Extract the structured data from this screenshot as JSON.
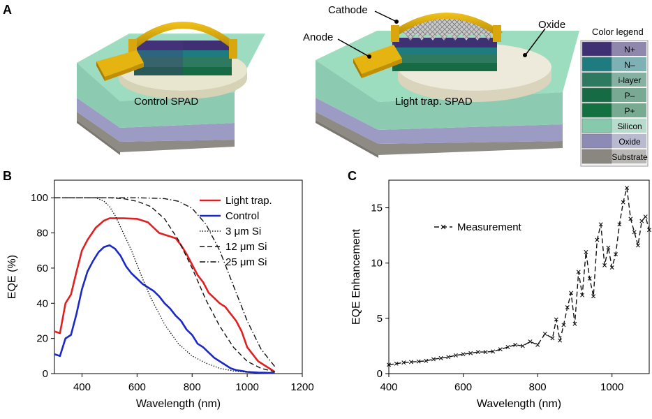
{
  "panels": {
    "a": "A",
    "b": "B",
    "c": "C"
  },
  "devices": {
    "control_label": "Control SPAD",
    "trap_label": "Light trap. SPAD",
    "callouts": {
      "cathode": "Cathode",
      "anode": "Anode",
      "oxide": "Oxide"
    }
  },
  "color_legend": {
    "title": "Color legend",
    "items": [
      {
        "label": "N+",
        "color": "#3f2f73"
      },
      {
        "label": "N–",
        "color": "#1e7b80"
      },
      {
        "label": "i-layer",
        "color": "#2d7a61"
      },
      {
        "label": "P–",
        "color": "#166b45"
      },
      {
        "label": "P+",
        "color": "#137040"
      },
      {
        "label": "Silicon",
        "color": "#86c9ad"
      },
      {
        "label": "Oxide",
        "color": "#8b8bb5"
      },
      {
        "label": "Substrate",
        "color": "#8a8680"
      }
    ]
  },
  "chart_data": [
    {
      "type": "line",
      "panel": "B",
      "xlabel": "Wavelength (nm)",
      "ylabel": "EQE (%)",
      "xlim": [
        300,
        1200
      ],
      "ylim": [
        0,
        110
      ],
      "xticks": [
        400,
        600,
        800,
        1000,
        1200
      ],
      "yticks": [
        0,
        20,
        40,
        60,
        80,
        100
      ],
      "legend_position": "top-right",
      "series": [
        {
          "name": "Light trap.",
          "color": "#e02020",
          "style": "solid",
          "x": [
            300,
            320,
            340,
            360,
            380,
            400,
            420,
            450,
            480,
            500,
            520,
            550,
            580,
            600,
            620,
            640,
            660,
            680,
            700,
            720,
            740,
            760,
            780,
            800,
            820,
            840,
            860,
            880,
            900,
            920,
            940,
            960,
            980,
            1000,
            1020,
            1040,
            1060,
            1080,
            1100
          ],
          "y": [
            24,
            23,
            40,
            45,
            58,
            70,
            76,
            83,
            87,
            88.3,
            88.3,
            88.3,
            88.1,
            88,
            87,
            86,
            83,
            80,
            79,
            78,
            77,
            73,
            68,
            62,
            56,
            52,
            46,
            43,
            40,
            38,
            34,
            30,
            24,
            15,
            11,
            7,
            5,
            3,
            1
          ]
        },
        {
          "name": "Control",
          "color": "#1a28c8",
          "style": "solid",
          "x": [
            300,
            320,
            340,
            360,
            380,
            400,
            420,
            440,
            460,
            480,
            500,
            520,
            540,
            560,
            580,
            600,
            620,
            640,
            660,
            680,
            700,
            720,
            740,
            760,
            780,
            800,
            820,
            840,
            860,
            880,
            900,
            920,
            940,
            960,
            980,
            1000,
            1020,
            1040,
            1060,
            1080,
            1100
          ],
          "y": [
            11,
            10,
            20,
            22,
            34,
            48,
            58,
            64,
            69,
            72,
            73,
            71,
            67,
            61,
            57,
            54,
            51,
            49,
            47,
            44,
            40,
            37,
            33,
            30,
            25,
            22,
            17,
            15,
            12,
            9,
            7,
            5,
            3,
            2,
            1.5,
            1,
            0.8,
            0.6,
            0.5,
            0.4,
            0.3
          ]
        },
        {
          "name": "3 μm Si",
          "color": "#111111",
          "style": "dotted",
          "x": [
            300,
            400,
            450,
            480,
            500,
            520,
            550,
            580,
            600,
            620,
            650,
            680,
            700,
            750,
            800,
            850,
            900,
            950,
            1000
          ],
          "y": [
            100,
            100,
            100,
            98,
            95,
            90,
            80,
            70,
            62,
            54,
            43,
            34,
            28,
            17,
            10,
            6,
            3,
            1.5,
            0.8
          ]
        },
        {
          "name": "12 μm Si",
          "color": "#111111",
          "style": "dashed",
          "x": [
            300,
            500,
            550,
            600,
            650,
            700,
            750,
            800,
            850,
            900,
            950,
            1000,
            1050,
            1100
          ],
          "y": [
            100,
            100,
            99.5,
            98,
            95,
            88,
            76,
            60,
            42,
            27,
            15,
            7,
            3,
            1
          ]
        },
        {
          "name": "25 μm Si",
          "color": "#111111",
          "style": "dashdot",
          "x": [
            300,
            600,
            650,
            700,
            750,
            800,
            850,
            900,
            950,
            1000,
            1050,
            1100
          ],
          "y": [
            100,
            100,
            99.8,
            99.5,
            98,
            94,
            85,
            70,
            50,
            30,
            14,
            4
          ]
        }
      ]
    },
    {
      "type": "line",
      "panel": "C",
      "xlabel": "Wavelength (nm)",
      "ylabel": "EQE Enhancement",
      "xlim": [
        400,
        1100
      ],
      "ylim": [
        0,
        17.5
      ],
      "xticks": [
        400,
        600,
        800,
        1000
      ],
      "yticks": [
        0,
        5,
        10,
        15
      ],
      "legend_position": "top-left",
      "series": [
        {
          "name": "Measurement",
          "color": "#111111",
          "style": "dashed",
          "marker": "x",
          "x": [
            400,
            420,
            440,
            460,
            480,
            500,
            520,
            540,
            560,
            580,
            600,
            620,
            640,
            660,
            680,
            700,
            720,
            740,
            760,
            780,
            800,
            820,
            840,
            850,
            860,
            870,
            880,
            890,
            900,
            910,
            920,
            930,
            940,
            950,
            960,
            970,
            980,
            990,
            1000,
            1010,
            1020,
            1030,
            1040,
            1050,
            1060,
            1070,
            1080,
            1090,
            1100
          ],
          "y": [
            0.8,
            0.9,
            1.0,
            1.05,
            1.1,
            1.15,
            1.3,
            1.4,
            1.5,
            1.65,
            1.75,
            1.85,
            1.95,
            1.95,
            2.0,
            2.2,
            2.4,
            2.6,
            2.5,
            2.9,
            2.6,
            3.6,
            3.2,
            4.9,
            3.0,
            4.4,
            6.0,
            7.3,
            4.5,
            9.2,
            7.1,
            11.0,
            8.6,
            7.0,
            12.1,
            13.5,
            9.8,
            11.4,
            9.6,
            10.8,
            13.5,
            15.5,
            16.8,
            14.0,
            12.8,
            11.6,
            13.8,
            14.2,
            13.0
          ]
        }
      ]
    }
  ]
}
